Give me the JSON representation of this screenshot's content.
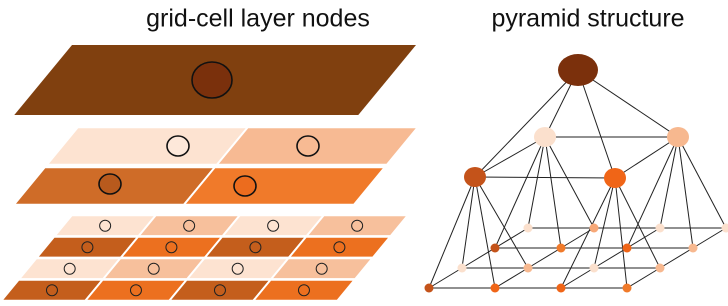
{
  "left_panel": {
    "title": "grid-cell layer nodes"
  },
  "right_panel": {
    "title": "pyramid structure"
  }
}
